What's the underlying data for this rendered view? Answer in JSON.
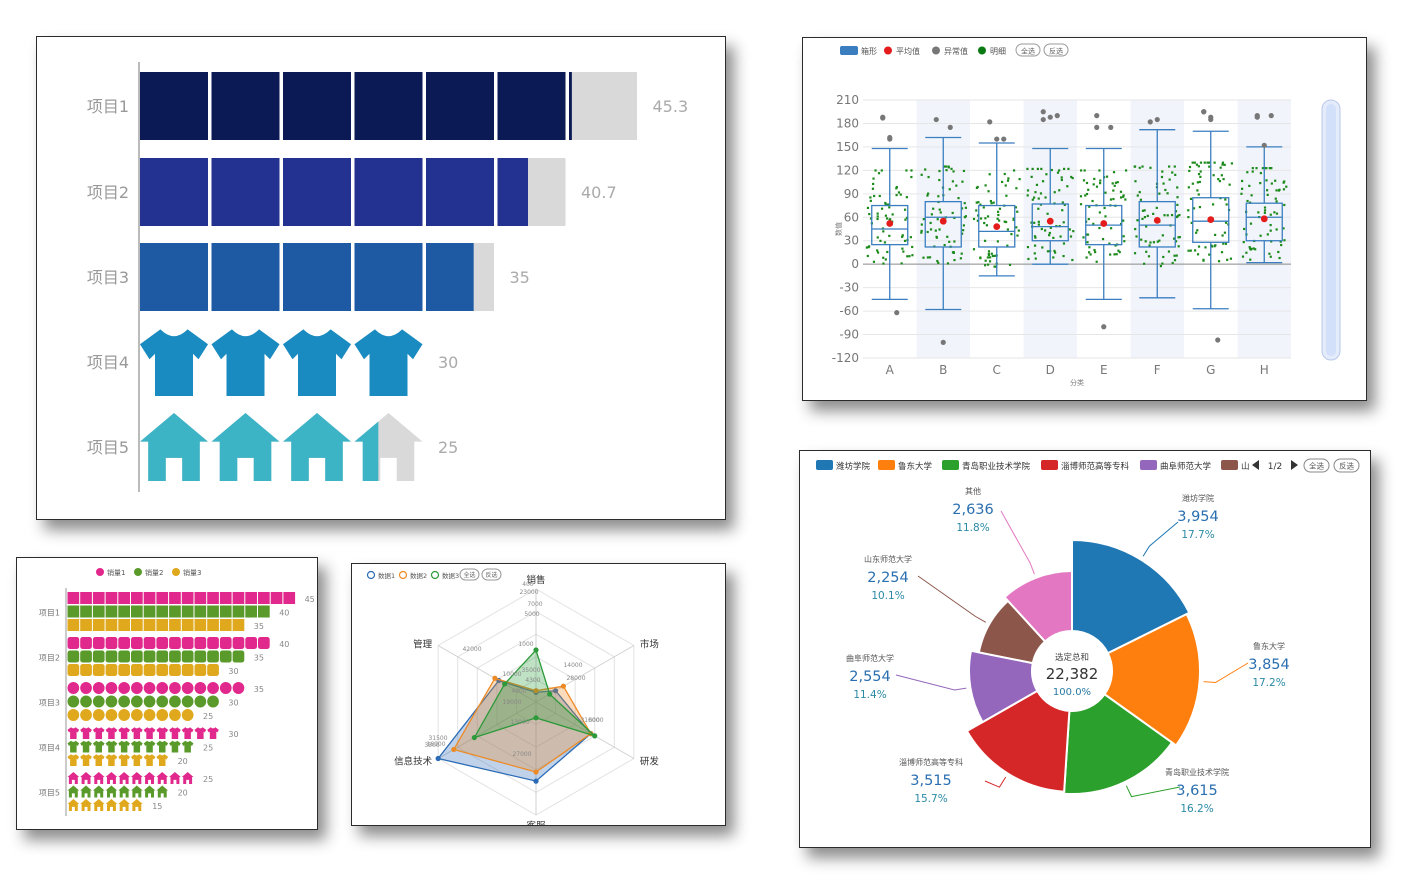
{
  "chart_data": [
    {
      "type": "bar",
      "categories": [
        "项目1",
        "项目2",
        "项目3",
        "项目4",
        "项目5"
      ],
      "values": [
        45.3,
        40.7,
        35,
        30,
        25
      ],
      "value_labels": [
        "45.3",
        "40.7",
        "35",
        "30",
        "25"
      ],
      "symbols": [
        "rect",
        "rect",
        "rect",
        "shirt",
        "house"
      ],
      "symbol_unit": 7.5,
      "symbol_count": 6,
      "colors": [
        "#0b1a55",
        "#233191",
        "#1e5aa3",
        "#1a8bc1",
        "#3db3c6"
      ],
      "xlim": [
        0,
        45
      ]
    },
    {
      "type": "boxplot",
      "legend": [
        "箱形",
        "平均值",
        "异常值",
        "明细",
        "全选",
        "反选"
      ],
      "categories": [
        "A",
        "B",
        "C",
        "D",
        "E",
        "F",
        "G",
        "H"
      ],
      "xlabel": "分类",
      "ylabel": "数值",
      "ylim": [
        -120,
        210
      ],
      "yticks": [
        "210",
        "180",
        "150",
        "120",
        "90",
        "60",
        "30",
        "0",
        "-30",
        "-60",
        "-90",
        "-120"
      ],
      "boxes": [
        {
          "min": -45,
          "q1": 25,
          "median": 45,
          "q3": 75,
          "max": 148,
          "mean": 52
        },
        {
          "min": -58,
          "q1": 22,
          "median": 60,
          "q3": 80,
          "max": 162,
          "mean": 55
        },
        {
          "min": -15,
          "q1": 22,
          "median": 42,
          "q3": 75,
          "max": 155,
          "mean": 48
        },
        {
          "min": 0,
          "q1": 30,
          "median": 48,
          "q3": 77,
          "max": 148,
          "mean": 55
        },
        {
          "min": -45,
          "q1": 25,
          "median": 50,
          "q3": 75,
          "max": 148,
          "mean": 52
        },
        {
          "min": -43,
          "q1": 22,
          "median": 50,
          "q3": 80,
          "max": 172,
          "mean": 56
        },
        {
          "min": -57,
          "q1": 28,
          "median": 55,
          "q3": 85,
          "max": 170,
          "mean": 57
        },
        {
          "min": 2,
          "q1": 30,
          "median": 60,
          "q3": 78,
          "max": 150,
          "mean": 58
        }
      ],
      "outliers": [
        [
          [
            187,
            162,
            -62
          ],
          [
            185,
            -100
          ],
          [
            182,
            160
          ],
          [
            195,
            188
          ],
          [
            190,
            -80
          ],
          [
            182
          ],
          [
            195,
            188,
            -97
          ],
          [
            190,
            152
          ]
        ],
        [
          [
            188,
            160
          ],
          [
            175
          ],
          [
            160
          ],
          [
            190,
            185
          ],
          [
            175,
            175
          ],
          [
            185
          ],
          [
            195,
            185
          ],
          [
            190,
            188
          ]
        ]
      ]
    },
    {
      "type": "bar",
      "legend": [
        "销量1",
        "销量2",
        "销量3"
      ],
      "colors": [
        "#e1288c",
        "#5a9a2a",
        "#e0a81c"
      ],
      "categories": [
        "项目1",
        "项目2",
        "项目3",
        "项目4",
        "项目5"
      ],
      "symbols": [
        "rect",
        "roundRect",
        "circle",
        "shirt",
        "house"
      ],
      "series": [
        {
          "name": "销量1",
          "values": [
            45,
            40,
            35,
            30,
            25
          ]
        },
        {
          "name": "销量2",
          "values": [
            40,
            35,
            30,
            25,
            20
          ]
        },
        {
          "name": "销量3",
          "values": [
            35,
            30,
            25,
            20,
            15
          ]
        }
      ],
      "value_labels": [
        [
          "45",
          "40",
          "35"
        ],
        [
          "40",
          "35",
          "30"
        ],
        [
          "35",
          "30",
          "25"
        ],
        [
          "30",
          "25",
          "20"
        ],
        [
          "25",
          "20",
          "15"
        ]
      ]
    },
    {
      "type": "radar",
      "legend": [
        "数据1",
        "数据2",
        "数据3",
        "全选",
        "反选"
      ],
      "indicators": [
        "销售",
        "市场",
        "研发",
        "客服",
        "信息技术",
        "管理"
      ],
      "series": [
        {
          "name": "数据1",
          "color": "#2b6bb5",
          "values": [
            4300,
            10000,
            28000,
            35000,
            50000,
            19000
          ]
        },
        {
          "name": "数据2",
          "color": "#ee8a25",
          "values": [
            5000,
            14000,
            28000,
            31000,
            42000,
            21000
          ]
        },
        {
          "name": "数据3",
          "color": "#2c9a3a",
          "values": [
            23000,
            7000,
            30000,
            7000,
            31500,
            16000
          ]
        }
      ],
      "point_labels": [
        "400",
        "5000",
        "14000",
        "28000",
        "31000",
        "35000",
        "4300",
        "10000",
        "19000",
        "27000",
        "6000",
        "42000",
        "23000",
        "7000",
        "31500",
        "16000",
        "3500",
        "13000",
        "1000",
        "4000"
      ]
    },
    {
      "type": "pie",
      "legend": [
        "潍坊学院",
        "鲁东大学",
        "青岛职业技术学院",
        "淄博师范高等专科",
        "曲阜师范大学",
        "山东师范大学"
      ],
      "legend_page": "1/2",
      "legend_buttons": [
        "全选",
        "反选"
      ],
      "center_title": "选定总和",
      "center_value": "22,382",
      "center_pct": "100.0%",
      "slices": [
        {
          "name": "潍坊学院",
          "value": 3954,
          "value_label": "3,954",
          "pct": "17.7%",
          "color": "#1f77b4"
        },
        {
          "name": "鲁东大学",
          "value": 3854,
          "value_label": "3,854",
          "pct": "17.2%",
          "color": "#ff7f0e"
        },
        {
          "name": "青岛职业技术学院",
          "value": 3615,
          "value_label": "3,615",
          "pct": "16.2%",
          "color": "#2ca02c"
        },
        {
          "name": "淄博师范高等专科",
          "value": 3515,
          "value_label": "3,515",
          "pct": "15.7%",
          "color": "#d62728"
        },
        {
          "name": "曲阜师范大学",
          "value": 2554,
          "value_label": "2,554",
          "pct": "11.4%",
          "color": "#9467bd"
        },
        {
          "name": "山东师范大学",
          "value": 2254,
          "value_label": "2,254",
          "pct": "10.1%",
          "color": "#8c564b"
        },
        {
          "name": "其他",
          "value": 2636,
          "value_label": "2,636",
          "pct": "11.8%",
          "color": "#e377c2"
        }
      ]
    }
  ]
}
